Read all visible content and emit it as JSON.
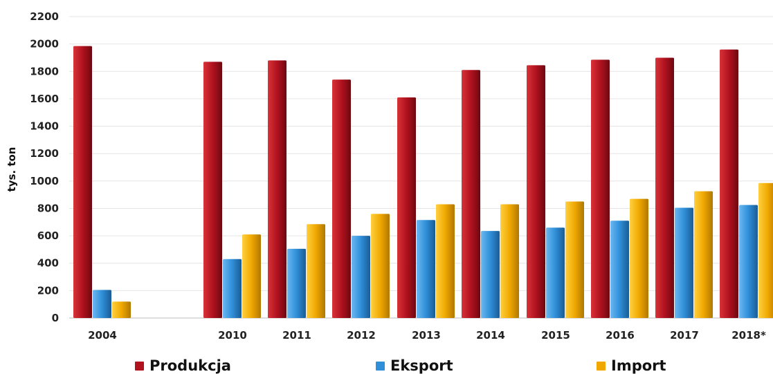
{
  "chart_data": {
    "type": "bar",
    "categories": [
      "2004",
      "2010",
      "2011",
      "2012",
      "2013",
      "2014",
      "2015",
      "2016",
      "2017",
      "2018*"
    ],
    "series": [
      {
        "name": "Produkcja",
        "color": "#b0121e",
        "values": [
          1985,
          1870,
          1880,
          1740,
          1610,
          1810,
          1845,
          1885,
          1900,
          1960
        ]
      },
      {
        "name": "Eksport",
        "color": "#2f8fd8",
        "values": [
          205,
          430,
          505,
          600,
          715,
          635,
          660,
          710,
          805,
          825
        ]
      },
      {
        "name": "Import",
        "color": "#f0a800",
        "values": [
          120,
          610,
          685,
          760,
          830,
          830,
          850,
          870,
          925,
          985
        ]
      }
    ],
    "title": "",
    "xlabel": "",
    "ylabel": "tys. ton",
    "ylim": [
      0,
      2200
    ],
    "yticks": [
      0,
      200,
      400,
      600,
      800,
      1000,
      1200,
      1400,
      1600,
      1800,
      2000,
      2200
    ],
    "grid": true,
    "legend_position": "bottom"
  }
}
